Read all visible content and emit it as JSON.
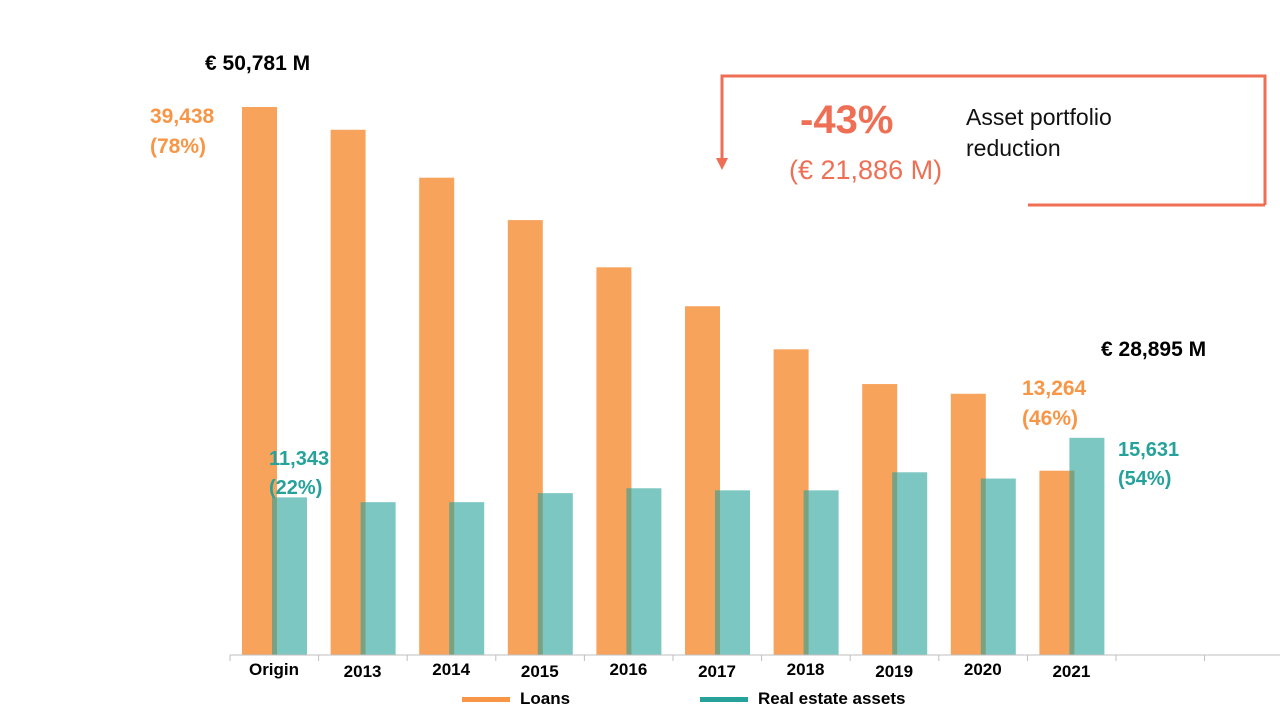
{
  "chart_data": {
    "type": "bar",
    "categories": [
      "Origin",
      "2013",
      "2014",
      "2015",
      "2016",
      "2017",
      "2018",
      "2019",
      "2020",
      "2021"
    ],
    "series": [
      {
        "name": "Loans",
        "color": "#F79646",
        "values": [
          39438,
          37800,
          34350,
          31300,
          27900,
          25100,
          22000,
          19500,
          18800,
          13264
        ]
      },
      {
        "name": "Real estate assets",
        "color": "#26A29B",
        "values": [
          11343,
          11000,
          11000,
          11650,
          12000,
          11850,
          11850,
          13150,
          12700,
          15631
        ]
      }
    ],
    "ylim": [
      0,
      39438
    ],
    "grid": false,
    "legend": "bottom"
  },
  "labels": {
    "origin_total": "€ 50,781 M",
    "origin_loans": "39,438",
    "origin_loans_pct": "(78%)",
    "origin_re": "11,343",
    "origin_re_pct": "(22%)",
    "final_total": "€ 28,895 M",
    "final_loans": "13,264",
    "final_loans_pct": "(46%)",
    "final_re": "15,631",
    "final_re_pct": "(54%)"
  },
  "callout": {
    "percent": "-43%",
    "amount": "(€ 21,886 M)",
    "text_line1": "Asset portfolio",
    "text_line2": "reduction",
    "color": "#EE6F54"
  },
  "legend": {
    "loans": "Loans",
    "real_estate": "Real estate assets"
  }
}
